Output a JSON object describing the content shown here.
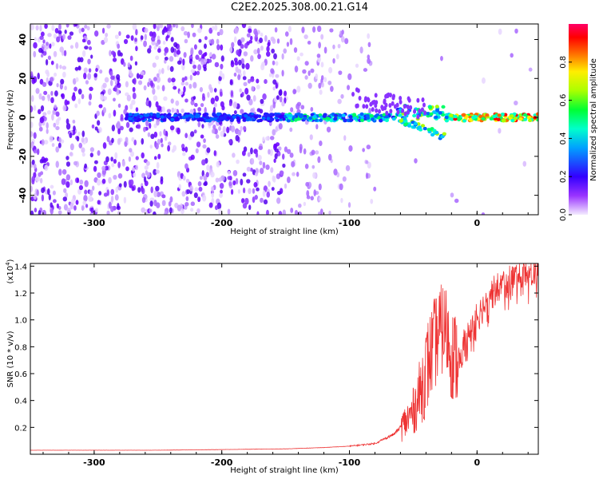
{
  "title": "C2E2.2025.308.00.21.G14",
  "chart_data": [
    {
      "type": "heatmap",
      "xlabel": "Height of straight line (km)",
      "ylabel": "Frequency (Hz)",
      "xlim": [
        -350,
        48
      ],
      "ylim": [
        -50,
        48
      ],
      "x_ticks": [
        -300,
        -200,
        -100,
        0
      ],
      "x_tick_labels": [
        "-300",
        "-200",
        "-100",
        "0"
      ],
      "y_ticks": [
        -40,
        -20,
        0,
        20,
        40
      ],
      "y_tick_labels": [
        "-40",
        "-20",
        "0",
        "20",
        "40"
      ],
      "colorbar": {
        "label": "Normalized spectral amplitude",
        "range": [
          0,
          1
        ],
        "ticks": [
          0.0,
          0.2,
          0.4,
          0.6,
          0.8
        ],
        "tick_labels": [
          "0.0",
          "0.2",
          "0.4",
          "0.6",
          "0.8"
        ],
        "colors": [
          "#f0e6ff",
          "#8a2be2",
          "#3300ff",
          "#00c8ff",
          "#00ff7f",
          "#7fff00",
          "#ffff00",
          "#ff8000",
          "#ff0000",
          "#ff0080"
        ]
      },
      "ridge": {
        "description_x_start": -275,
        "x_end": 48,
        "center_hz": 0
      }
    },
    {
      "type": "line",
      "xlabel": "Height of straight line (km)",
      "ylabel": "SNR (10 * v/v)",
      "y_scale_label": "(x10",
      "y_scale_exponent": "4",
      "y_scale_close": ")",
      "xlim": [
        -350,
        48
      ],
      "ylim": [
        0,
        1.42
      ],
      "x_ticks": [
        -300,
        -200,
        -100,
        0
      ],
      "x_tick_labels": [
        "-300",
        "-200",
        "-100",
        "0"
      ],
      "y_ticks": [
        0.2,
        0.4,
        0.6,
        0.8,
        1.0,
        1.2,
        1.4
      ],
      "y_tick_labels": [
        "0.2",
        "0.4",
        "0.6",
        "0.8",
        "1.0",
        "1.2",
        "1.4"
      ],
      "series": [
        {
          "name": "SNR",
          "color": "#ee3333",
          "x": [
            -350,
            -300,
            -250,
            -200,
            -150,
            -120,
            -100,
            -80,
            -65,
            -55,
            -50,
            -45,
            -40,
            -35,
            -30,
            -25,
            -20,
            -15,
            -10,
            -5,
            0,
            10,
            20,
            30,
            40,
            48
          ],
          "y": [
            0.03,
            0.03,
            0.03,
            0.035,
            0.04,
            0.05,
            0.06,
            0.08,
            0.15,
            0.25,
            0.32,
            0.45,
            0.62,
            0.78,
            0.9,
            0.95,
            0.75,
            0.7,
            0.82,
            0.92,
            1.02,
            1.18,
            1.27,
            1.32,
            1.35,
            1.36
          ]
        }
      ]
    }
  ]
}
